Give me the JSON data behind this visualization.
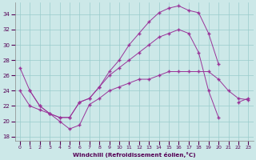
{
  "xlabel": "Windchill (Refroidissement éolien,°C)",
  "xlim": [
    -0.5,
    23.5
  ],
  "ylim": [
    17.5,
    35.5
  ],
  "xticks": [
    0,
    1,
    2,
    3,
    4,
    5,
    6,
    7,
    8,
    9,
    10,
    11,
    12,
    13,
    14,
    15,
    16,
    17,
    18,
    19,
    20,
    21,
    22,
    23
  ],
  "yticks": [
    18,
    20,
    22,
    24,
    26,
    28,
    30,
    32,
    34
  ],
  "bg_color": "#cce8e8",
  "grid_color": "#99cccc",
  "line_color": "#993399",
  "line1_x": [
    0,
    1,
    2,
    3,
    4,
    5,
    6,
    7,
    8,
    9,
    10,
    11,
    12,
    13,
    14,
    15,
    16,
    17,
    18,
    19,
    20
  ],
  "line1_y": [
    27.0,
    24.0,
    22.0,
    21.0,
    20.5,
    20.5,
    22.5,
    23.0,
    24.5,
    26.5,
    28.0,
    30.0,
    31.5,
    33.0,
    34.2,
    34.8,
    35.1,
    34.5,
    34.2,
    31.5,
    27.5
  ],
  "line2_x": [
    1,
    2,
    3,
    4,
    5,
    6,
    7,
    8,
    9,
    10,
    11,
    12,
    13,
    14,
    15,
    16,
    17,
    18,
    19,
    20,
    22,
    23
  ],
  "line2_y": [
    24.0,
    22.0,
    21.0,
    20.5,
    20.5,
    22.5,
    23.0,
    24.5,
    26.0,
    27.0,
    28.0,
    29.0,
    30.0,
    31.0,
    31.5,
    32.0,
    31.5,
    29.0,
    24.0,
    20.5,
    22.5,
    23.0
  ],
  "line3_x": [
    0,
    1,
    2,
    3,
    4,
    5,
    6,
    7,
    8,
    9,
    10,
    11,
    12,
    13,
    14,
    15,
    16,
    17,
    18,
    19,
    20,
    21,
    22,
    23
  ],
  "line3_y": [
    24.0,
    22.0,
    21.5,
    21.0,
    20.0,
    19.0,
    19.5,
    22.2,
    23.0,
    24.0,
    24.5,
    25.0,
    25.5,
    25.5,
    26.0,
    26.5,
    26.5,
    26.5,
    26.5,
    26.5,
    25.5,
    24.0,
    23.0,
    22.8
  ]
}
